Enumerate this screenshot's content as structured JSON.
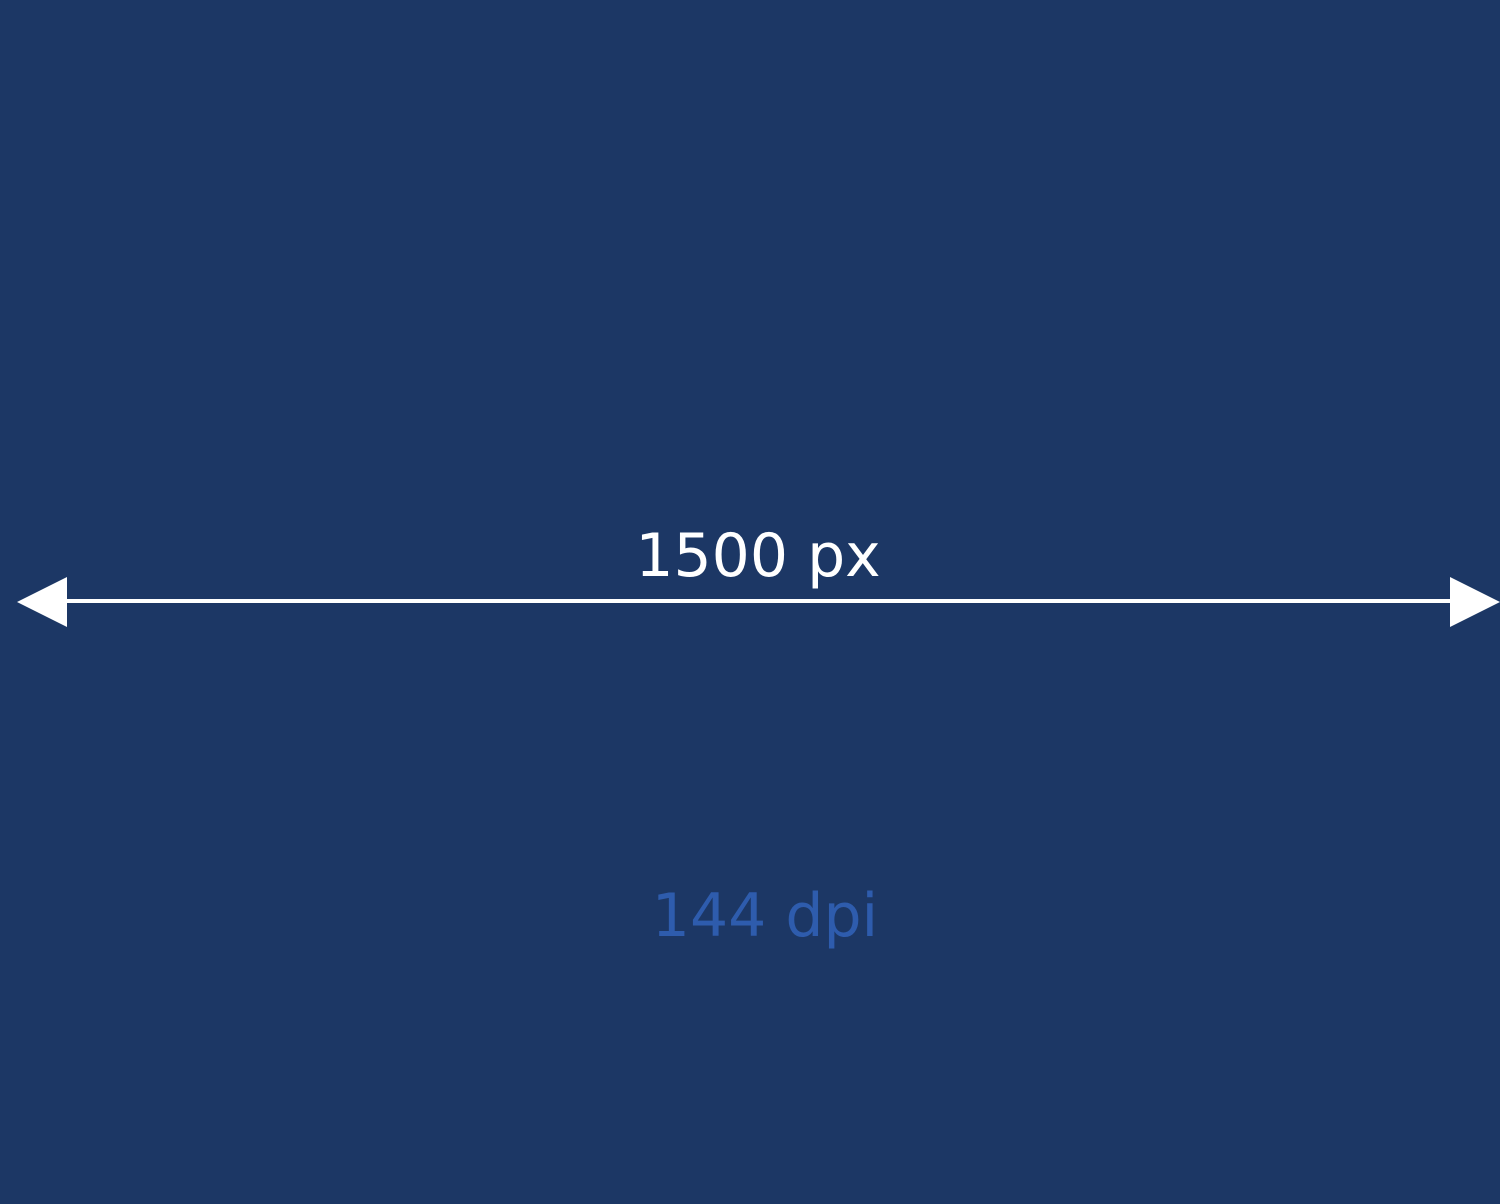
{
  "width_label": "1500 px",
  "dpi_label": "144 dpi",
  "colors": {
    "background": "#1c3765",
    "arrow": "#ffffff",
    "dpi_text": "#2e5cad"
  }
}
